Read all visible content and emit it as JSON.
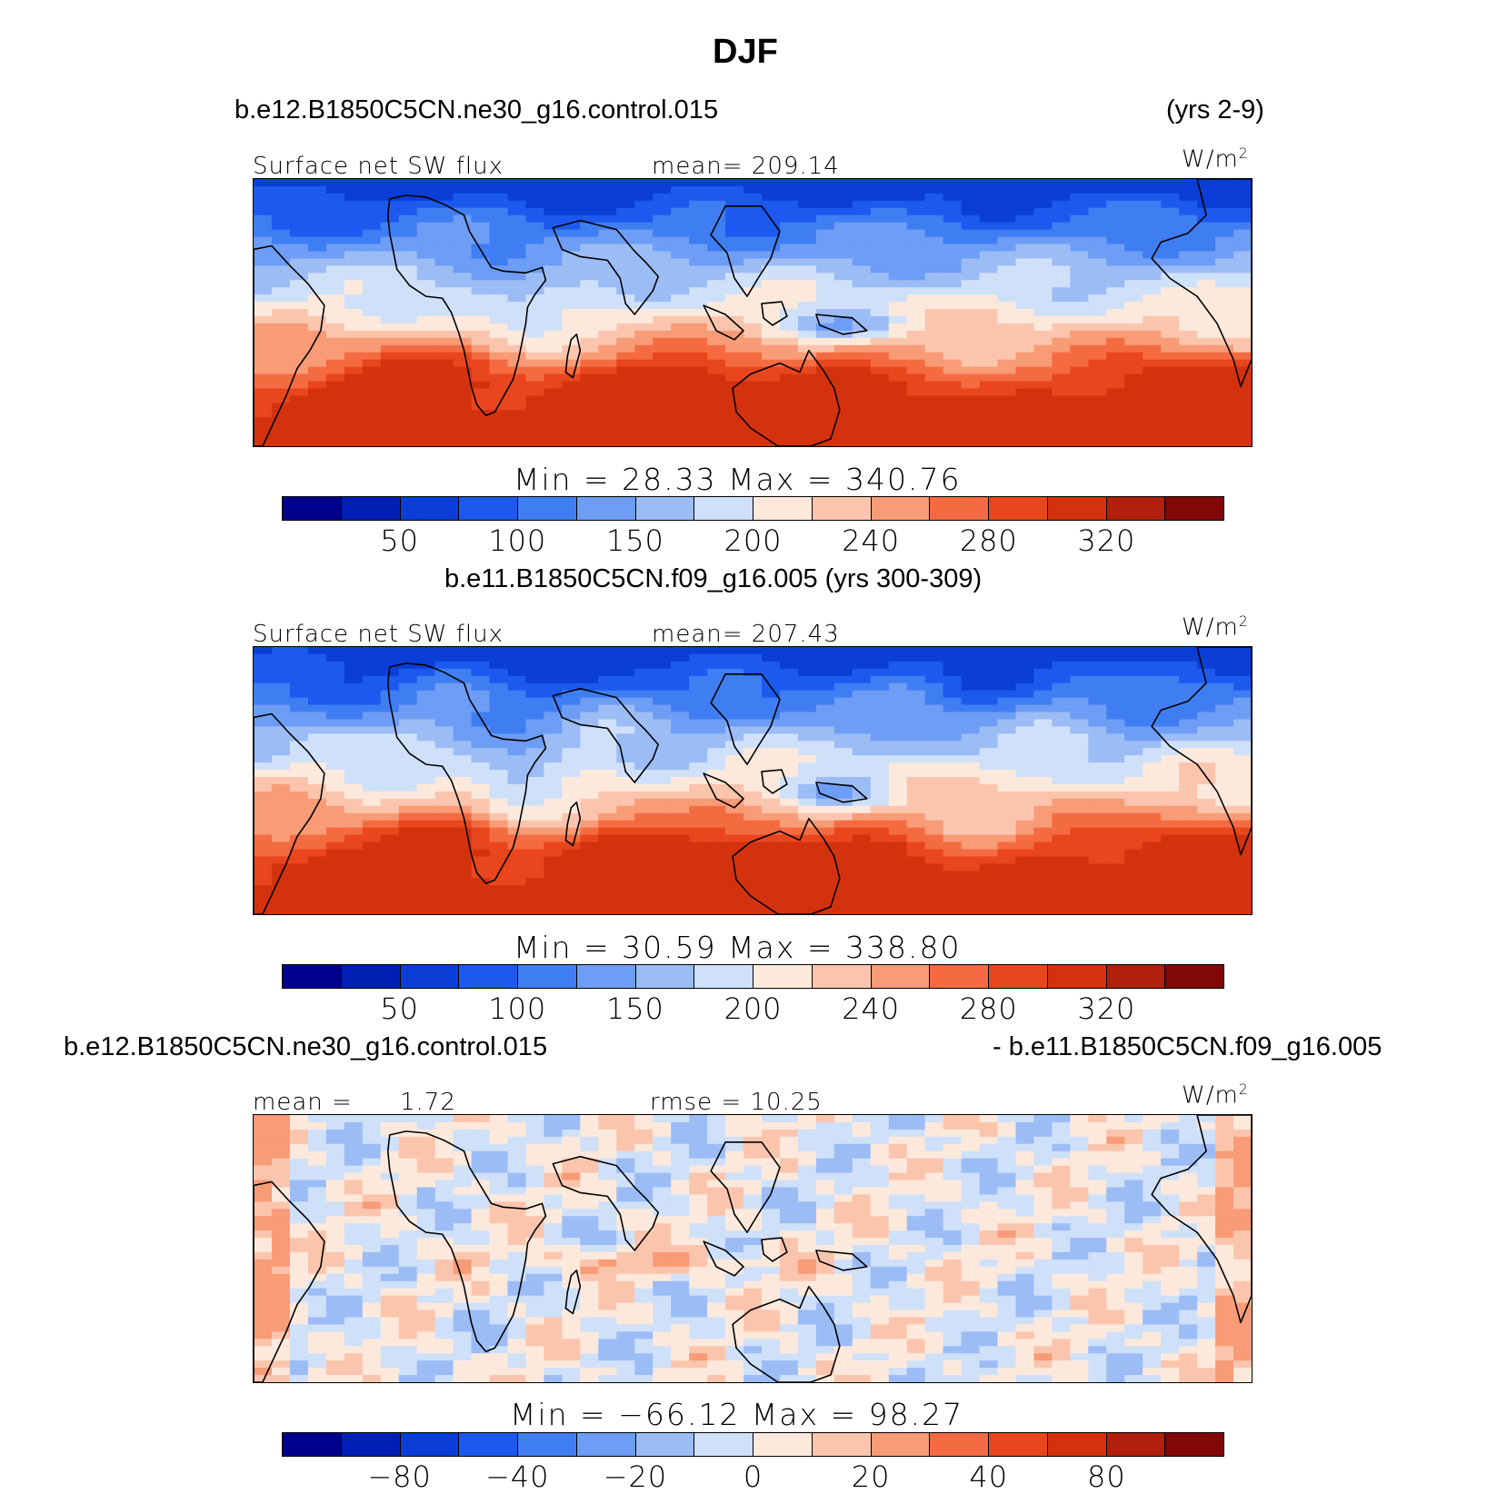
{
  "figure": {
    "title": "DJF",
    "case_a": "b.e12.B1850C5CN.ne30_g16.control.015",
    "years_a": "(yrs 2-9)",
    "case_b_line": "b.e11.B1850C5CN.f09_g16.005 (yrs 300-309)",
    "diff_left": "b.e12.B1850C5CN.ne30_g16.control.015",
    "diff_right": "- b.e11.B1850C5CN.f09_g16.005"
  },
  "panels": [
    {
      "variable": "Surface net SW flux",
      "stat": "mean= 209.14",
      "units": "W/m",
      "units_sup": "2",
      "minmax": "Min =  28.33  Max = 340.76",
      "ticks": [
        "50",
        "100",
        "150",
        "200",
        "240",
        "280",
        "320"
      ]
    },
    {
      "variable": "Surface net SW flux",
      "stat": "mean= 207.43",
      "units": "W/m",
      "units_sup": "2",
      "minmax": "Min =  30.59  Max = 338.80",
      "ticks": [
        "50",
        "100",
        "150",
        "200",
        "240",
        "280",
        "320"
      ]
    },
    {
      "variable": "mean =",
      "stat_value": "1.72",
      "stat": "rmse =  10.25",
      "units": "W/m",
      "units_sup": "2",
      "minmax": "Min = −66.12  Max =  98.27",
      "ticks": [
        "−80",
        "−40",
        "−20",
        "0",
        "20",
        "40",
        "80"
      ]
    }
  ],
  "colors": {
    "palette": [
      "#00008f",
      "#0020b5",
      "#0a3ed6",
      "#1c5aef",
      "#3f7ef2",
      "#6d9df5",
      "#9cbcf6",
      "#cfe0f9",
      "#fde9dc",
      "#fbc5ad",
      "#f89b77",
      "#f46b42",
      "#e9461d",
      "#d4320f",
      "#b0200b",
      "#820707"
    ]
  }
}
